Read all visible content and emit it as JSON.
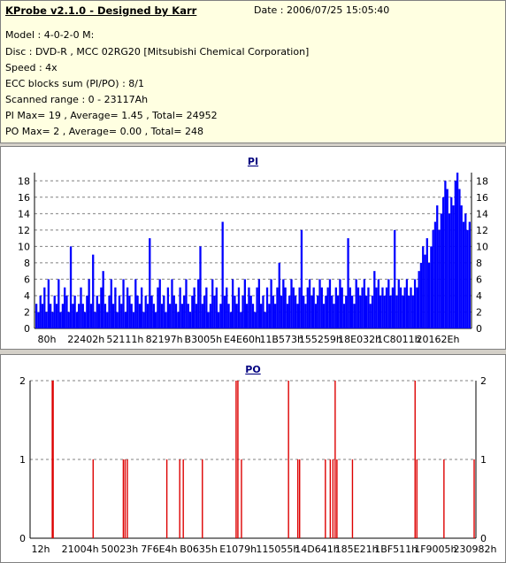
{
  "header": {
    "title": "KProbe v2.1.0 - Designed by Karr",
    "date": "Date : 2006/07/25 15:05:40",
    "lines": [
      "Model : 4-0-2-0 M:",
      "Disc : DVD-R , MCC 02RG20   [Mitsubishi Chemical Corporation]",
      "Speed : 4x",
      "ECC blocks sum (PI/PO) : 8/1",
      "Scanned range : 0 - 23117Ah",
      "PI Max= 19 , Average= 1.45 , Total= 24952",
      "PO Max= 2 , Average= 0.00 , Total= 248"
    ]
  },
  "colors": {
    "pi_series": "#0000ff",
    "po_series": "#dd0000",
    "panel_bg": "#ffffff",
    "info_bg": "#ffffe1",
    "chart_title": "#000080"
  },
  "chart_data": [
    {
      "type": "bar",
      "title": "PI",
      "xlabel": "",
      "ylabel": "",
      "ylim": [
        0,
        19
      ],
      "yticks": [
        0,
        2,
        4,
        6,
        8,
        10,
        12,
        14,
        16,
        18
      ],
      "x_tick_labels": [
        "80h",
        "22402h",
        "52111h",
        "82197h",
        "B3005h",
        "E4E60h",
        "11B573h",
        "155259h",
        "18E032h",
        "1C8011h",
        "20162Eh"
      ],
      "grid": true,
      "secondary_y_axis": true,
      "summary": {
        "max": 19,
        "average": 1.45,
        "total": 24952
      },
      "series": [
        {
          "values": [
            3,
            2,
            4,
            3,
            5,
            2,
            6,
            3,
            2,
            4,
            3,
            6,
            2,
            3,
            5,
            4,
            2,
            10,
            3,
            4,
            2,
            3,
            5,
            3,
            2,
            4,
            6,
            3,
            9,
            2,
            4,
            3,
            5,
            7,
            3,
            2,
            4,
            6,
            3,
            5,
            2,
            4,
            3,
            6,
            2,
            5,
            4,
            3,
            2,
            6,
            4,
            3,
            5,
            2,
            4,
            3,
            11,
            4,
            3,
            2,
            5,
            6,
            3,
            4,
            2,
            5,
            3,
            6,
            4,
            3,
            2,
            5,
            3,
            4,
            6,
            3,
            2,
            4,
            5,
            3,
            6,
            10,
            3,
            4,
            5,
            2,
            3,
            6,
            4,
            5,
            2,
            3,
            13,
            4,
            5,
            3,
            2,
            6,
            4,
            3,
            5,
            2,
            4,
            6,
            3,
            5,
            4,
            3,
            2,
            5,
            6,
            3,
            4,
            2,
            5,
            3,
            6,
            4,
            3,
            5,
            8,
            4,
            6,
            5,
            3,
            4,
            6,
            5,
            4,
            3,
            5,
            12,
            4,
            3,
            5,
            6,
            4,
            5,
            3,
            4,
            6,
            5,
            3,
            4,
            5,
            6,
            4,
            3,
            5,
            4,
            6,
            5,
            3,
            4,
            11,
            5,
            4,
            3,
            6,
            5,
            4,
            5,
            6,
            4,
            5,
            3,
            4,
            7,
            5,
            6,
            4,
            5,
            4,
            5,
            6,
            4,
            5,
            12,
            4,
            6,
            5,
            4,
            5,
            6,
            4,
            5,
            4,
            6,
            5,
            7,
            8,
            10,
            9,
            11,
            8,
            10,
            12,
            13,
            15,
            12,
            14,
            16,
            18,
            17,
            14,
            16,
            15,
            18,
            19,
            17,
            15,
            13,
            14,
            12,
            13
          ]
        }
      ]
    },
    {
      "type": "bar",
      "title": "PO",
      "xlabel": "",
      "ylabel": "",
      "ylim": [
        0,
        2
      ],
      "yticks": [
        0,
        1,
        2
      ],
      "x_tick_labels": [
        "12h",
        "21004h",
        "50023h",
        "7F6E4h",
        "B0635h",
        "E1079h",
        "115055h",
        "14D641h",
        "185E21h",
        "1BF511h",
        "1F9005h",
        "230982h"
      ],
      "grid": true,
      "secondary_y_axis": true,
      "summary": {
        "max": 2,
        "average": 0.0,
        "total": 248
      },
      "events": [
        {
          "x": 0.048,
          "value": 2
        },
        {
          "x": 0.05,
          "value": 2
        },
        {
          "x": 0.14,
          "value": 1
        },
        {
          "x": 0.208,
          "value": 1
        },
        {
          "x": 0.212,
          "value": 1
        },
        {
          "x": 0.217,
          "value": 1
        },
        {
          "x": 0.306,
          "value": 1
        },
        {
          "x": 0.335,
          "value": 1
        },
        {
          "x": 0.343,
          "value": 1
        },
        {
          "x": 0.386,
          "value": 1
        },
        {
          "x": 0.462,
          "value": 2
        },
        {
          "x": 0.466,
          "value": 2
        },
        {
          "x": 0.474,
          "value": 1
        },
        {
          "x": 0.58,
          "value": 2
        },
        {
          "x": 0.601,
          "value": 1
        },
        {
          "x": 0.605,
          "value": 1
        },
        {
          "x": 0.663,
          "value": 1
        },
        {
          "x": 0.674,
          "value": 1
        },
        {
          "x": 0.68,
          "value": 1
        },
        {
          "x": 0.685,
          "value": 2
        },
        {
          "x": 0.689,
          "value": 1
        },
        {
          "x": 0.724,
          "value": 1
        },
        {
          "x": 0.865,
          "value": 2
        },
        {
          "x": 0.869,
          "value": 1
        },
        {
          "x": 0.93,
          "value": 1
        },
        {
          "x": 0.998,
          "value": 1
        }
      ]
    }
  ]
}
